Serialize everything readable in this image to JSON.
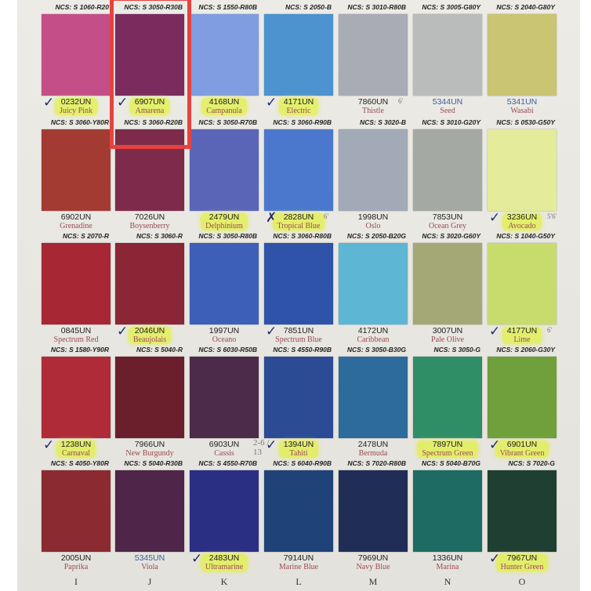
{
  "highlight_color": "#e8413e",
  "columns": [
    "I",
    "J",
    "K",
    "L",
    "M",
    "N",
    "O"
  ],
  "rows": [
    [
      {
        "ncs": "NCS: S 1060-R20",
        "code": "0232UN",
        "name": "Juicy Pink",
        "color": "#c44f88",
        "check": "✓",
        "marker": true
      },
      {
        "ncs": "NCS: S 3050-R30B",
        "code": "6907UN",
        "name": "Amarena",
        "color": "#7b2b5e",
        "check": "✓",
        "marker": true,
        "selected": true
      },
      {
        "ncs": "NCS: S 1550-R80B",
        "code": "4168UN",
        "name": "Campanula",
        "color": "#7f9de0",
        "marker": true
      },
      {
        "ncs": "NCS: S 2050-B",
        "code": "4171UN",
        "name": "Electric",
        "color": "#4c93cf",
        "check": "✓",
        "marker": true
      },
      {
        "ncs": "NCS: S 3010-R80B",
        "code": "7860UN",
        "name": "Thistle",
        "color": "#a9abb5",
        "note": "6'"
      },
      {
        "ncs": "NCS: S 3005-G80Y",
        "code": "5344UN",
        "name": "Seed",
        "color": "#b9bcba",
        "blue": true
      },
      {
        "ncs": "NCS: S 2040-G80Y",
        "code": "5341UN",
        "name": "Wasabi",
        "color": "#c9c572",
        "blue": true
      }
    ],
    [
      {
        "ncs": "NCS: S 3060-Y80R",
        "code": "6902UN",
        "name": "Grenadine",
        "color": "#a43b33"
      },
      {
        "ncs": "NCS: S 3060-R20B",
        "code": "7026UN",
        "name": "Boysenberry",
        "color": "#7e2b4b"
      },
      {
        "ncs": "NCS: S 3050-R70B",
        "code": "2479UN",
        "name": "Delphinium",
        "color": "#5b65b8",
        "marker": true
      },
      {
        "ncs": "NCS: S 3060-R90B",
        "code": "2828UN",
        "name": "Tropical Blue",
        "color": "#4b78cc",
        "check": "✗",
        "marker": true,
        "note": "6'"
      },
      {
        "ncs": "NCS: S 3020-B",
        "code": "1998UN",
        "name": "Oslo",
        "color": "#a1aab6"
      },
      {
        "ncs": "NCS: S 3010-G20Y",
        "code": "7853UN",
        "name": "Ocean Grey",
        "color": "#a4a9a3"
      },
      {
        "ncs": "NCS: S 0530-G50Y",
        "code": "3236UN",
        "name": "Avocado",
        "color": "#e4eb9b",
        "check": "✓",
        "marker": true,
        "note": "5'6'"
      }
    ],
    [
      {
        "ncs": "NCS: S 2070-R",
        "code": "0845UN",
        "name": "Spectrum Red",
        "color": "#a82735"
      },
      {
        "ncs": "NCS: S 3060-R",
        "code": "2046UN",
        "name": "Beaujolais",
        "color": "#8a2636",
        "check": "✓",
        "marker": true
      },
      {
        "ncs": "NCS: S 3050-R80B",
        "code": "1997UN",
        "name": "Oceano",
        "color": "#3d5fb8"
      },
      {
        "ncs": "NCS: S 3060-R80B",
        "code": "7851UN",
        "name": "Spectrum Blue",
        "color": "#2f53a9",
        "check": "✓"
      },
      {
        "ncs": "NCS: S 2050-B20G",
        "code": "4172UN",
        "name": "Caribbean",
        "color": "#5db6d4"
      },
      {
        "ncs": "NCS: S 3020-G60Y",
        "code": "3007UN",
        "name": "Pale Olive",
        "color": "#a4a876"
      },
      {
        "ncs": "NCS: S 1040-G50Y",
        "code": "4177UN",
        "name": "Lime",
        "color": "#c7dc6d",
        "check": "✓",
        "marker": true,
        "note": "6'"
      }
    ],
    [
      {
        "ncs": "NCS: S 1580-Y90R",
        "code": "1238UN",
        "name": "Carnaval",
        "color": "#b02b38",
        "check": "✓",
        "marker": true
      },
      {
        "ncs": "NCS: S 5040-R",
        "code": "7966UN",
        "name": "New Burgundy",
        "color": "#6b1f2d"
      },
      {
        "ncs": "NCS: S 6030-R50B",
        "code": "6903UN",
        "name": "Cassis",
        "color": "#4b2b49"
      },
      {
        "ncs": "NCS: S 4550-R90B",
        "code": "1394UN",
        "name": "Tahiti",
        "color": "#2b4b95",
        "check": "✓",
        "marker": true,
        "note": "2-6 / 13"
      },
      {
        "ncs": "NCS: S 3050-B30G",
        "code": "2478UN",
        "name": "Bermuda",
        "color": "#2c6b9b"
      },
      {
        "ncs": "NCS: S 3050-G",
        "code": "7897UN",
        "name": "Spectrum Green",
        "color": "#2f8e65",
        "marker": true
      },
      {
        "ncs": "NCS: S 2060-G30Y",
        "code": "6901UN",
        "name": "Vibrant Green",
        "color": "#6fa03b",
        "check": "✓",
        "marker": true
      }
    ],
    [
      {
        "ncs": "NCS: S 4050-Y80R",
        "code": "2005UN",
        "name": "Paprika",
        "color": "#8b2b31"
      },
      {
        "ncs": "NCS: S 5040-R30B",
        "code": "5345UN",
        "name": "Viola",
        "color": "#4f2549",
        "blue": true
      },
      {
        "ncs": "NCS: S 4550-R70B",
        "code": "2483UN",
        "name": "Ultramarine",
        "color": "#2b2f83",
        "check": "✓",
        "marker": true
      },
      {
        "ncs": "NCS: S 6040-R90B",
        "code": "7914UN",
        "name": "Marine Blue",
        "color": "#1f4379"
      },
      {
        "ncs": "NCS: S 7020-R80B",
        "code": "7969UN",
        "name": "Navy Blue",
        "color": "#1f2d57"
      },
      {
        "ncs": "NCS: S 5040-B70G",
        "code": "1336UN",
        "name": "Marina",
        "color": "#1e6b63"
      },
      {
        "ncs": "NCS: S 7020-G",
        "code": "7967UN",
        "name": "Hunter Green",
        "color": "#1e3f31",
        "check": "✓",
        "marker": true
      }
    ]
  ]
}
